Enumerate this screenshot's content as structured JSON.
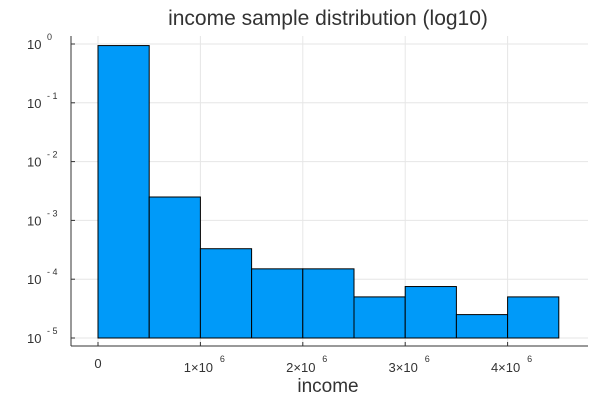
{
  "chart_data": {
    "type": "bar",
    "title": "income sample distribution (log10)",
    "xlabel": "income",
    "ylabel": "",
    "x_scale": "linear",
    "y_scale": "log10",
    "xlim": [
      -250000,
      4750000
    ],
    "ylim": [
      1e-05,
      1
    ],
    "grid": true,
    "legend": "none",
    "bar_color": "#009af9",
    "bins": [
      {
        "from": 0,
        "to": 500000,
        "value": 0.94
      },
      {
        "from": 500000,
        "to": 1000000,
        "value": 0.0025
      },
      {
        "from": 1000000,
        "to": 1500000,
        "value": 0.00033
      },
      {
        "from": 1500000,
        "to": 2000000,
        "value": 0.00015
      },
      {
        "from": 2000000,
        "to": 2500000,
        "value": 0.00015
      },
      {
        "from": 2500000,
        "to": 3000000,
        "value": 5e-05
      },
      {
        "from": 3000000,
        "to": 3500000,
        "value": 7.5e-05
      },
      {
        "from": 3500000,
        "to": 4000000,
        "value": 2.5e-05
      },
      {
        "from": 4000000,
        "to": 4500000,
        "value": 5e-05
      }
    ],
    "x_ticks": [
      {
        "value": 0,
        "base": "0",
        "exp": ""
      },
      {
        "value": 1000000,
        "base": "1×10",
        "exp": "6"
      },
      {
        "value": 2000000,
        "base": "2×10",
        "exp": "6"
      },
      {
        "value": 3000000,
        "base": "3×10",
        "exp": "6"
      },
      {
        "value": 4000000,
        "base": "4×10",
        "exp": "6"
      }
    ],
    "y_ticks": [
      {
        "value": 1,
        "base": "10",
        "exp": "0"
      },
      {
        "value": 0.1,
        "base": "10",
        "exp": "- 1"
      },
      {
        "value": 0.01,
        "base": "10",
        "exp": "- 2"
      },
      {
        "value": 0.001,
        "base": "10",
        "exp": "- 3"
      },
      {
        "value": 0.0001,
        "base": "10",
        "exp": "- 4"
      },
      {
        "value": 1e-05,
        "base": "10",
        "exp": "- 5"
      }
    ]
  }
}
